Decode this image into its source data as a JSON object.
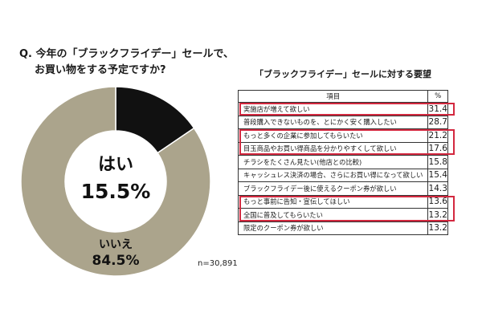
{
  "question": {
    "line1": "Q. 今年の「ブラックフライデー」セールで、",
    "line2": "お買い物をする予定ですか?"
  },
  "n_label": "n=30,891",
  "table": {
    "title": "「ブラックフライデー」セールに対する要望",
    "header_item": "項目",
    "header_pct": "%"
  },
  "chart_data": [
    {
      "type": "pie",
      "categories": [
        "はい",
        "いいえ"
      ],
      "values": [
        15.5,
        84.5
      ],
      "value_labels": [
        "15.5%",
        "84.5%"
      ],
      "colors": [
        "#111111",
        "#aba48c"
      ]
    },
    {
      "type": "table",
      "columns": [
        "項目",
        "%"
      ],
      "rows": [
        {
          "label": "実施店が増えて欲しい",
          "value": "31.4",
          "highlight": true
        },
        {
          "label": "普段購入できないものを、とにかく安く購入したい",
          "value": "28.7",
          "highlight": false
        },
        {
          "label": "もっと多くの企業に参加してもらいたい",
          "value": "21.2",
          "highlight": true
        },
        {
          "label": "目玉商品やお買い得商品を分かりやすくして欲しい",
          "value": "17.6",
          "highlight": true
        },
        {
          "label": "チラシをたくさん見たい(他店との比較)",
          "value": "15.8",
          "highlight": false
        },
        {
          "label": "キャッシュレス決済の場合、さらにお買い得になって欲しい",
          "value": "15.4",
          "highlight": false
        },
        {
          "label": "ブラックフライデー後に使えるクーポン券が欲しい",
          "value": "14.3",
          "highlight": false
        },
        {
          "label": "もっと事前に告知・宣伝してほしい",
          "value": "13.6",
          "highlight": true
        },
        {
          "label": "全国に普及してもらいたい",
          "value": "13.2",
          "highlight": true
        },
        {
          "label": "限定のクーポン券が欲しい",
          "value": "13.2",
          "highlight": false
        }
      ]
    }
  ]
}
